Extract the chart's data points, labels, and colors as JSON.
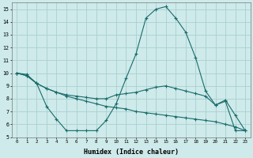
{
  "xlabel": "Humidex (Indice chaleur)",
  "bg_color": "#ceeaea",
  "grid_color": "#aacfcf",
  "line_color": "#1a6b6b",
  "xlim": [
    -0.5,
    23.5
  ],
  "ylim": [
    5,
    15.5
  ],
  "yticks": [
    5,
    6,
    7,
    8,
    9,
    10,
    11,
    12,
    13,
    14,
    15
  ],
  "xticks": [
    0,
    1,
    2,
    3,
    4,
    5,
    6,
    7,
    8,
    9,
    10,
    11,
    12,
    13,
    14,
    15,
    16,
    17,
    18,
    19,
    20,
    21,
    22,
    23
  ],
  "line1_x": [
    0,
    1,
    2,
    3,
    4,
    5,
    6,
    7,
    8,
    9,
    10,
    11,
    12,
    13,
    14,
    15,
    16,
    17,
    18,
    19,
    20,
    21,
    22,
    23
  ],
  "line1_y": [
    10.0,
    9.9,
    9.2,
    7.4,
    6.4,
    5.5,
    5.5,
    5.5,
    5.5,
    6.3,
    7.6,
    9.6,
    11.5,
    14.3,
    15.0,
    15.2,
    14.3,
    13.2,
    11.2,
    8.6,
    7.5,
    7.9,
    6.7,
    5.5
  ],
  "line2_x": [
    0,
    1,
    2,
    3,
    4,
    5,
    6,
    7,
    8,
    9,
    10,
    11,
    12,
    13,
    14,
    15,
    16,
    17,
    18,
    19,
    20,
    21,
    22,
    23
  ],
  "line2_y": [
    10.0,
    9.8,
    9.2,
    8.8,
    8.5,
    8.3,
    8.2,
    8.1,
    8.0,
    8.0,
    8.3,
    8.4,
    8.5,
    8.7,
    8.9,
    9.0,
    8.8,
    8.6,
    8.4,
    8.2,
    7.5,
    7.8,
    5.5,
    5.5
  ],
  "line3_x": [
    0,
    1,
    2,
    3,
    4,
    5,
    6,
    7,
    8,
    9,
    10,
    11,
    12,
    13,
    14,
    15,
    16,
    17,
    18,
    19,
    20,
    21,
    22,
    23
  ],
  "line3_y": [
    10.0,
    9.8,
    9.2,
    8.8,
    8.5,
    8.2,
    8.0,
    7.8,
    7.6,
    7.4,
    7.3,
    7.2,
    7.0,
    6.9,
    6.8,
    6.7,
    6.6,
    6.5,
    6.4,
    6.3,
    6.2,
    6.0,
    5.8,
    5.5
  ]
}
